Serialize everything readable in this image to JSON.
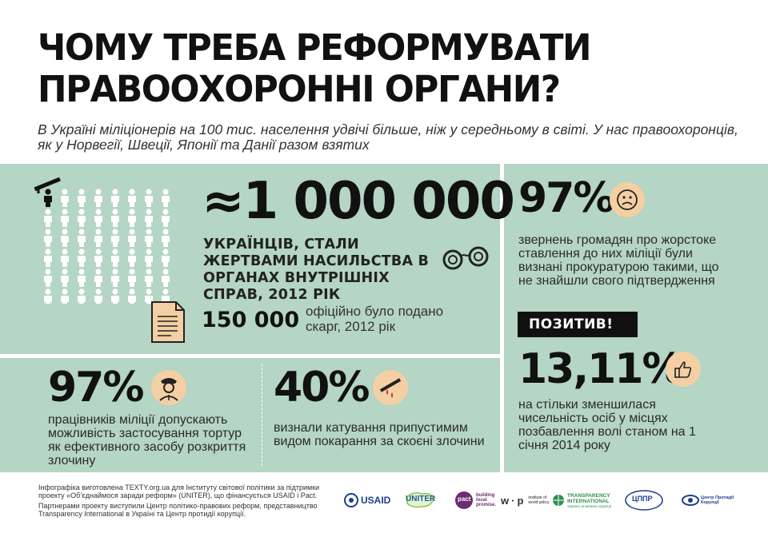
{
  "header": {
    "title_line1": "ЧОМУ ТРЕБА РЕФОРМУВАТИ",
    "title_line2": "ПРАВООХОРОННІ ОРГАНИ?",
    "subtitle": "В Україні міліціонерів на 100 тис. населення удвічі більше, ніж у середньому в світі. У нас правоохоронців, як у Норвегії, Швеції, Японії та Данії  разом взятих"
  },
  "main": {
    "big_number": "≈1 000 000",
    "big_desc": "УКРАЇНЦІВ, СТАЛИ ЖЕРТВАМИ НАСИЛЬСТВА В ОРГАНАХ ВНУТРІШНІХ СПРАВ, 2012 РІК",
    "complaints_number": "150 000",
    "complaints_desc": "офіційно було подано скарг, 2012 рік"
  },
  "stat_torture": {
    "percent": "97%",
    "text": "працівників міліції допускають можливість застосування тортур як ефективного засобу розкриття злочину"
  },
  "stat_punishment": {
    "percent": "40%",
    "text": "визнали катування припустимим видом покарання за скоєні злочини"
  },
  "stat_complaints": {
    "percent": "97%",
    "text": "звернень громадян про жорстоке ставлення до них міліції були визнані прокуратурою такими, що не знайшли свого підтвердження"
  },
  "positive": {
    "badge": "ПОЗИТИВ!",
    "percent": "13,11%",
    "text": "на стільки зменшилася чисельність осіб у місцях позбавлення волі станом на 1 січня 2014 року"
  },
  "footer": {
    "credits_line1": "Інфографіка виготовлена TEXTY.org.ua для Інституту світової політики за підтримки проекту «Об’єднаймося заради реформ» (UNITER), що фінансується USAID і Pact.",
    "credits_line2": "Партнерами проекту виступили Центр політико-правових реформ, представництво Transparency International в Україні та Центр протидії корупції.",
    "logos": {
      "usaid": "USAID",
      "uniter": "UNITER",
      "pact": "pact",
      "pact_tag": "building local promise.",
      "iwp": "institute of world policy",
      "ti": "TRANSPARENCY INTERNATIONAL",
      "ti_sub": "Україна за межею корупції",
      "cppr": "ЦППР",
      "anticor": "Центр Протидії Корупції"
    }
  },
  "colors": {
    "panel": "#b5d5c5",
    "accent_face": "#f4cfa3",
    "blood": "#c0272d"
  }
}
